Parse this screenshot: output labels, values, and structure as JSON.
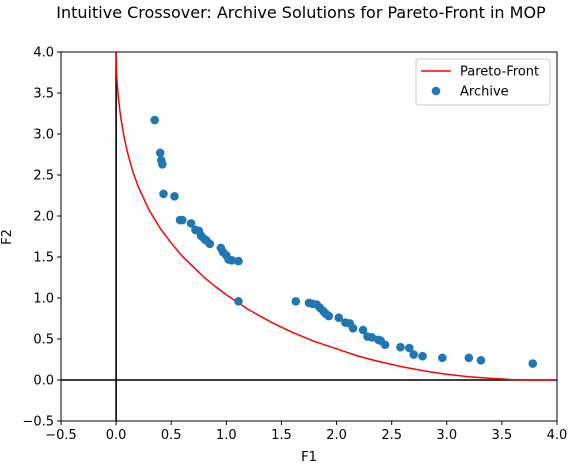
{
  "chart_data": {
    "type": "scatter",
    "title": "Intuitive Crossover: Archive Solutions for Pareto-Front in MOP",
    "xlabel": "F1",
    "ylabel": "F2",
    "xlim": [
      -0.5,
      4.0
    ],
    "ylim": [
      -0.5,
      4.0
    ],
    "xticks": [
      -0.5,
      0.0,
      0.5,
      1.0,
      1.5,
      2.0,
      2.5,
      3.0,
      3.5,
      4.0
    ],
    "yticks": [
      -0.5,
      0.0,
      0.5,
      1.0,
      1.5,
      2.0,
      2.5,
      3.0,
      3.5,
      4.0
    ],
    "xtick_labels": [
      "−0.5",
      "0.0",
      "0.5",
      "1.0",
      "1.5",
      "2.0",
      "2.5",
      "3.0",
      "3.5",
      "4.0"
    ],
    "ytick_labels": [
      "−0.5",
      "0.0",
      "0.5",
      "1.0",
      "1.5",
      "2.0",
      "2.5",
      "3.0",
      "3.5",
      "4.0"
    ],
    "grid": false,
    "reference_lines": {
      "x": 0,
      "y": 0,
      "color": "#000000"
    },
    "legend": {
      "position": "top-right"
    },
    "series": [
      {
        "name": "Pareto-Front",
        "kind": "line",
        "color": "#ff0000",
        "x": [
          0.0,
          0.005,
          0.01,
          0.02,
          0.04,
          0.07,
          0.1,
          0.15,
          0.2,
          0.3,
          0.4,
          0.5,
          0.6,
          0.7,
          0.8,
          0.9,
          1.0,
          1.2,
          1.4,
          1.6,
          1.8,
          2.0,
          2.2,
          2.4,
          2.6,
          2.8,
          3.0,
          3.2,
          3.4,
          3.6,
          3.8,
          4.0
        ],
        "y": [
          4.0,
          3.72,
          3.61,
          3.45,
          3.22,
          2.98,
          2.79,
          2.55,
          2.36,
          2.07,
          1.85,
          1.67,
          1.51,
          1.38,
          1.25,
          1.14,
          1.04,
          0.86,
          0.71,
          0.58,
          0.47,
          0.38,
          0.29,
          0.22,
          0.16,
          0.11,
          0.07,
          0.04,
          0.02,
          0.005,
          0.0,
          0.0
        ]
      },
      {
        "name": "Archive",
        "kind": "scatter",
        "color": "#1f77b4",
        "points": [
          [
            0.35,
            3.17
          ],
          [
            0.4,
            2.77
          ],
          [
            0.41,
            2.68
          ],
          [
            0.42,
            2.63
          ],
          [
            0.43,
            2.27
          ],
          [
            0.53,
            2.24
          ],
          [
            0.58,
            1.95
          ],
          [
            0.6,
            1.95
          ],
          [
            0.68,
            1.91
          ],
          [
            0.72,
            1.83
          ],
          [
            0.75,
            1.82
          ],
          [
            0.77,
            1.76
          ],
          [
            0.8,
            1.72
          ],
          [
            0.82,
            1.7
          ],
          [
            0.85,
            1.66
          ],
          [
            0.95,
            1.61
          ],
          [
            0.97,
            1.56
          ],
          [
            1.0,
            1.52
          ],
          [
            1.02,
            1.47
          ],
          [
            1.05,
            1.46
          ],
          [
            1.11,
            1.45
          ],
          [
            1.11,
            0.96
          ],
          [
            1.63,
            0.96
          ],
          [
            1.75,
            0.94
          ],
          [
            1.78,
            0.93
          ],
          [
            1.82,
            0.92
          ],
          [
            1.85,
            0.88
          ],
          [
            1.88,
            0.84
          ],
          [
            1.9,
            0.81
          ],
          [
            1.93,
            0.78
          ],
          [
            2.02,
            0.76
          ],
          [
            2.08,
            0.7
          ],
          [
            2.12,
            0.69
          ],
          [
            2.15,
            0.63
          ],
          [
            2.24,
            0.61
          ],
          [
            2.28,
            0.53
          ],
          [
            2.32,
            0.52
          ],
          [
            2.38,
            0.49
          ],
          [
            2.4,
            0.48
          ],
          [
            2.44,
            0.43
          ],
          [
            2.58,
            0.4
          ],
          [
            2.66,
            0.39
          ],
          [
            2.7,
            0.31
          ],
          [
            2.78,
            0.29
          ],
          [
            2.96,
            0.27
          ],
          [
            3.2,
            0.27
          ],
          [
            3.31,
            0.24
          ],
          [
            3.78,
            0.2
          ]
        ]
      }
    ]
  }
}
